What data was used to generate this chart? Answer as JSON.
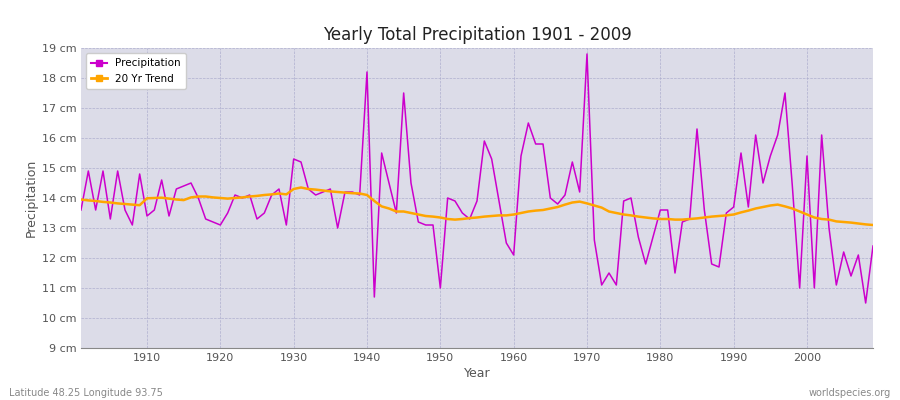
{
  "title": "Yearly Total Precipitation 1901 - 2009",
  "xlabel": "Year",
  "ylabel": "Precipitation",
  "subtitle_left": "Latitude 48.25 Longitude 93.75",
  "subtitle_right": "worldspecies.org",
  "ylim": [
    9,
    19
  ],
  "ytick_labels": [
    "9 cm",
    "10 cm",
    "11 cm",
    "12 cm",
    "13 cm",
    "14 cm",
    "15 cm",
    "16 cm",
    "17 cm",
    "18 cm",
    "19 cm"
  ],
  "ytick_values": [
    9,
    10,
    11,
    12,
    13,
    14,
    15,
    16,
    17,
    18,
    19
  ],
  "xlim": [
    1901,
    2009
  ],
  "precip_color": "#cc00cc",
  "trend_color": "#ffa500",
  "bg_color": "#dcdce8",
  "fig_color": "#ffffff",
  "legend_precip": "Precipitation",
  "legend_trend": "20 Yr Trend",
  "years": [
    1901,
    1902,
    1903,
    1904,
    1905,
    1906,
    1907,
    1908,
    1909,
    1910,
    1911,
    1912,
    1913,
    1914,
    1915,
    1916,
    1917,
    1918,
    1919,
    1920,
    1921,
    1922,
    1923,
    1924,
    1925,
    1926,
    1927,
    1928,
    1929,
    1930,
    1931,
    1932,
    1933,
    1934,
    1935,
    1936,
    1937,
    1938,
    1939,
    1940,
    1941,
    1942,
    1943,
    1944,
    1945,
    1946,
    1947,
    1948,
    1949,
    1950,
    1951,
    1952,
    1953,
    1954,
    1955,
    1956,
    1957,
    1958,
    1959,
    1960,
    1961,
    1962,
    1963,
    1964,
    1965,
    1966,
    1967,
    1968,
    1969,
    1970,
    1971,
    1972,
    1973,
    1974,
    1975,
    1976,
    1977,
    1978,
    1979,
    1980,
    1981,
    1982,
    1983,
    1984,
    1985,
    1986,
    1987,
    1988,
    1989,
    1990,
    1991,
    1992,
    1993,
    1994,
    1995,
    1996,
    1997,
    1998,
    1999,
    2000,
    2001,
    2002,
    2003,
    2004,
    2005,
    2006,
    2007,
    2008,
    2009
  ],
  "precip": [
    13.6,
    14.9,
    13.6,
    14.9,
    13.3,
    14.9,
    13.6,
    13.1,
    14.8,
    13.4,
    13.6,
    14.6,
    13.4,
    14.3,
    14.4,
    14.5,
    14.0,
    13.3,
    13.2,
    13.1,
    13.5,
    14.1,
    14.0,
    14.1,
    13.3,
    13.5,
    14.1,
    14.3,
    13.1,
    15.3,
    15.2,
    14.3,
    14.1,
    14.2,
    14.3,
    13.0,
    14.2,
    14.2,
    14.1,
    18.2,
    10.7,
    15.5,
    14.5,
    13.5,
    17.5,
    14.5,
    13.2,
    13.1,
    13.1,
    11.0,
    14.0,
    13.9,
    13.5,
    13.3,
    13.9,
    15.9,
    15.3,
    13.9,
    12.5,
    12.1,
    15.4,
    16.5,
    15.8,
    15.8,
    14.0,
    13.8,
    14.1,
    15.2,
    14.2,
    18.8,
    12.6,
    11.1,
    11.5,
    11.1,
    13.9,
    14.0,
    12.7,
    11.8,
    12.7,
    13.6,
    13.6,
    11.5,
    13.2,
    13.3,
    16.3,
    13.6,
    11.8,
    11.7,
    13.5,
    13.7,
    15.5,
    13.7,
    16.1,
    14.5,
    15.4,
    16.1,
    17.5,
    14.4,
    11.0,
    15.4,
    11.0,
    16.1,
    13.0,
    11.1,
    12.2,
    11.4,
    12.1,
    10.5,
    12.4
  ],
  "trend": [
    13.95,
    13.92,
    13.9,
    13.87,
    13.85,
    13.82,
    13.8,
    13.78,
    13.76,
    13.99,
    14.0,
    14.01,
    13.98,
    13.95,
    13.93,
    14.02,
    14.05,
    14.05,
    14.02,
    14.0,
    13.98,
    14.0,
    14.02,
    14.05,
    14.07,
    14.1,
    14.12,
    14.15,
    14.12,
    14.3,
    14.35,
    14.3,
    14.28,
    14.25,
    14.22,
    14.2,
    14.18,
    14.16,
    14.15,
    14.1,
    13.9,
    13.72,
    13.65,
    13.55,
    13.55,
    13.5,
    13.45,
    13.4,
    13.38,
    13.35,
    13.3,
    13.28,
    13.3,
    13.33,
    13.35,
    13.38,
    13.4,
    13.42,
    13.42,
    13.45,
    13.5,
    13.55,
    13.58,
    13.6,
    13.65,
    13.7,
    13.78,
    13.85,
    13.88,
    13.82,
    13.75,
    13.68,
    13.55,
    13.5,
    13.45,
    13.42,
    13.38,
    13.35,
    13.32,
    13.3,
    13.3,
    13.28,
    13.28,
    13.3,
    13.32,
    13.35,
    13.38,
    13.4,
    13.42,
    13.45,
    13.52,
    13.58,
    13.65,
    13.7,
    13.75,
    13.78,
    13.72,
    13.65,
    13.55,
    13.45,
    13.35,
    13.3,
    13.28,
    13.22,
    13.2,
    13.18,
    13.15,
    13.12,
    13.1
  ]
}
